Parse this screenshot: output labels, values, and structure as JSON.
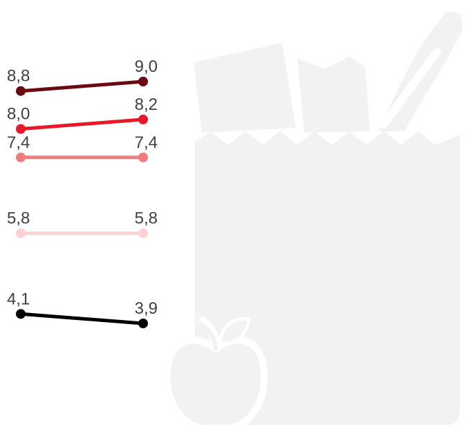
{
  "chart_data": {
    "type": "slope",
    "categories": [
      null,
      null
    ],
    "series": [
      {
        "color": "#6b0a12",
        "values": [
          8.8,
          9.0
        ],
        "value_labels": [
          "8,8",
          "9,0"
        ]
      },
      {
        "color": "#e8182b",
        "values": [
          8.0,
          8.2
        ],
        "value_labels": [
          "8,0",
          "8,2"
        ]
      },
      {
        "color": "#ef7a80",
        "values": [
          7.4,
          7.4
        ],
        "value_labels": [
          "7,4",
          "7,4"
        ]
      },
      {
        "color": "#fbd2d2",
        "values": [
          5.8,
          5.8
        ],
        "value_labels": [
          "5,8",
          "5,8"
        ]
      },
      {
        "color": "#000000",
        "values": [
          4.1,
          3.9
        ],
        "value_labels": [
          "4,1",
          "3,9"
        ]
      }
    ]
  }
}
